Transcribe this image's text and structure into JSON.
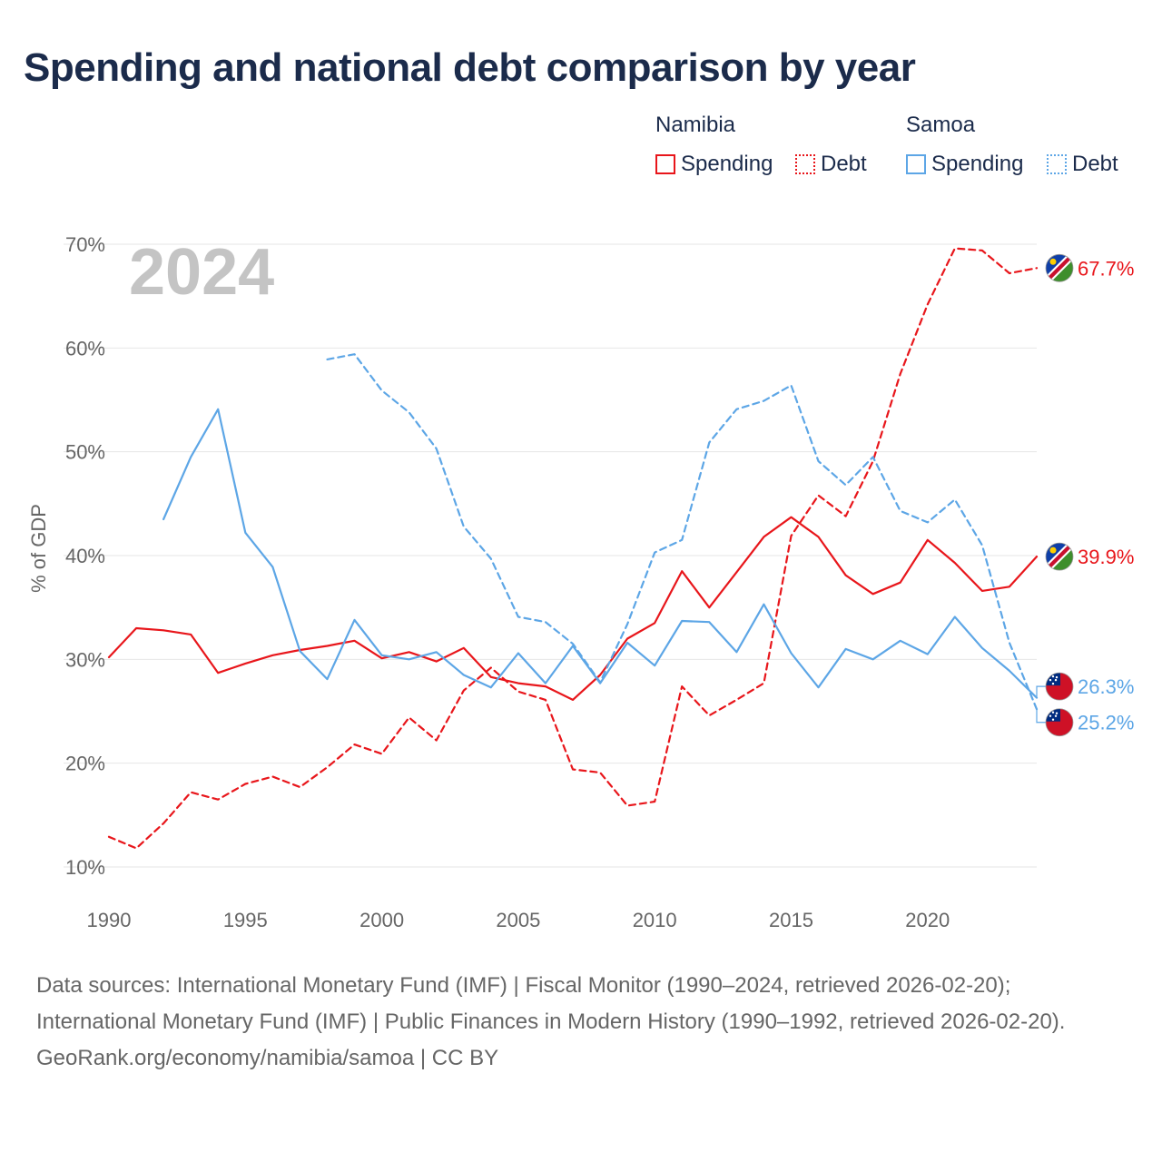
{
  "title": "Spending and national debt comparison by year",
  "legend": {
    "groups": [
      {
        "name": "Namibia",
        "items": [
          {
            "label": "Spending",
            "style": "solid",
            "color": "#e8161b"
          },
          {
            "label": "Debt",
            "style": "dotted",
            "color": "#e8161b"
          }
        ]
      },
      {
        "name": "Samoa",
        "items": [
          {
            "label": "Spending",
            "style": "solid",
            "color": "#5da6e6"
          },
          {
            "label": "Debt",
            "style": "dotted",
            "color": "#5da6e6"
          }
        ]
      }
    ]
  },
  "chart_data": {
    "type": "line",
    "year_label": "2024",
    "ylabel": "% of GDP",
    "xlim": [
      1990,
      2024
    ],
    "ylim": [
      10,
      70
    ],
    "x_ticks": [
      "1990",
      "1995",
      "2000",
      "2005",
      "2010",
      "2015",
      "2020"
    ],
    "y_ticks": [
      "10%",
      "20%",
      "30%",
      "40%",
      "50%",
      "60%",
      "70%"
    ],
    "series": [
      {
        "name": "Namibia Spending",
        "country": "Namibia",
        "color": "#e8161b",
        "dashed": false,
        "end_label": "39.9%",
        "start_year": 1990,
        "values": [
          30.2,
          33.0,
          32.8,
          32.4,
          28.7,
          29.6,
          30.4,
          30.9,
          31.3,
          31.8,
          30.1,
          30.7,
          29.8,
          31.1,
          28.3,
          27.7,
          27.4,
          26.1,
          28.5,
          32.0,
          33.5,
          38.5,
          35.0,
          38.4,
          41.8,
          43.7,
          41.8,
          38.1,
          36.3,
          37.4,
          41.5,
          39.3,
          36.6,
          37.0,
          39.9
        ]
      },
      {
        "name": "Namibia Debt",
        "country": "Namibia",
        "color": "#e8161b",
        "dashed": true,
        "end_label": "67.7%",
        "start_year": 1990,
        "values": [
          12.9,
          11.8,
          14.2,
          17.2,
          16.5,
          18.0,
          18.7,
          17.7,
          19.6,
          21.8,
          20.9,
          24.4,
          22.2,
          27.0,
          29.2,
          26.9,
          26.1,
          19.4,
          19.1,
          15.9,
          16.3,
          27.4,
          24.6,
          26.1,
          27.7,
          41.9,
          45.8,
          43.8,
          49.1,
          57.5,
          64.2,
          69.6,
          69.4,
          67.2,
          67.7
        ]
      },
      {
        "name": "Samoa Spending",
        "country": "Samoa",
        "color": "#5da6e6",
        "dashed": false,
        "end_label": "26.3%",
        "start_year": 1992,
        "values": [
          43.5,
          49.5,
          54.1,
          42.2,
          38.9,
          30.8,
          28.1,
          33.8,
          30.4,
          30.0,
          30.7,
          28.5,
          27.3,
          30.6,
          27.7,
          31.3,
          27.7,
          31.6,
          29.4,
          33.7,
          33.6,
          30.7,
          35.3,
          30.6,
          27.3,
          31.0,
          30.0,
          31.8,
          30.5,
          34.1,
          31.1,
          28.9,
          26.3
        ]
      },
      {
        "name": "Samoa Debt",
        "country": "Samoa",
        "color": "#5da6e6",
        "dashed": true,
        "end_label": "25.2%",
        "start_year": 1998,
        "values": [
          58.9,
          59.4,
          55.9,
          53.8,
          50.3,
          42.8,
          39.7,
          34.1,
          33.6,
          31.5,
          27.8,
          33.4,
          40.3,
          41.5,
          50.9,
          54.1,
          54.9,
          56.4,
          49.1,
          46.8,
          49.5,
          44.3,
          43.2,
          45.4,
          41.0,
          31.6,
          25.2
        ]
      }
    ]
  },
  "footer": {
    "sources": "Data sources: International Monetary Fund (IMF) | Fiscal Monitor (1990–2024, retrieved 2026-02-20); International Monetary Fund (IMF) | Public Finances in Modern History (1990–1992, retrieved 2026-02-20).",
    "credit": "GeoRank.org/economy/namibia/samoa | CC BY"
  }
}
